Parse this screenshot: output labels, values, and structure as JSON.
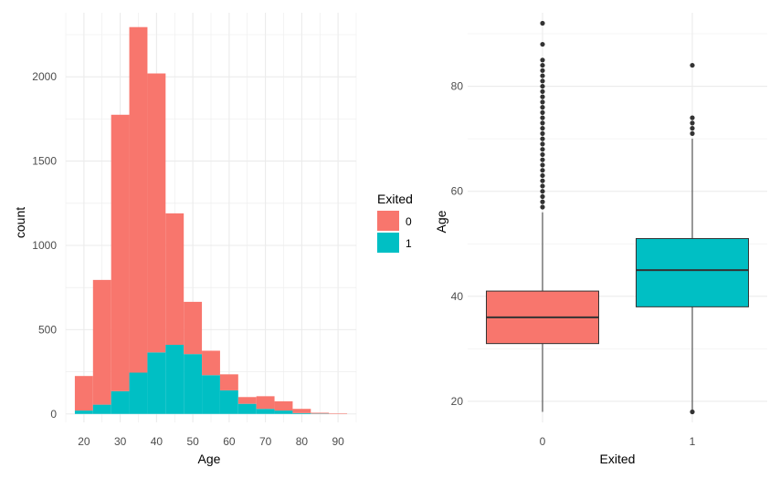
{
  "colors": {
    "exited_0": "#F8766D",
    "exited_1": "#00BFC4",
    "grid": "#ebebeb",
    "outline": "#333333"
  },
  "chart_data": [
    {
      "type": "bar",
      "subtype": "stacked-histogram",
      "title": "",
      "xlabel": "Age",
      "ylabel": "count",
      "bin_width": 5,
      "bin_starts": [
        17.5,
        22.5,
        27.5,
        32.5,
        37.5,
        42.5,
        47.5,
        52.5,
        57.5,
        62.5,
        67.5,
        72.5,
        77.5,
        82.5,
        87.5
      ],
      "series": [
        {
          "name": "0",
          "values": [
            205,
            740,
            1640,
            2050,
            1655,
            780,
            310,
            145,
            95,
            40,
            75,
            55,
            25,
            5,
            3
          ]
        },
        {
          "name": "1",
          "values": [
            20,
            55,
            135,
            245,
            365,
            410,
            355,
            230,
            140,
            60,
            30,
            20,
            5,
            2,
            0
          ]
        }
      ],
      "xlim": [
        15,
        95
      ],
      "ylim": [
        -50,
        2380
      ],
      "xticks": [
        20,
        30,
        40,
        50,
        60,
        70,
        80,
        90
      ],
      "yticks": [
        0,
        500,
        1000,
        1500,
        2000
      ],
      "legend": {
        "title": "Exited",
        "entries": [
          "0",
          "1"
        ],
        "position": "right"
      }
    },
    {
      "type": "boxplot",
      "title": "",
      "xlabel": "Exited",
      "ylabel": "Age",
      "categories": [
        "0",
        "1"
      ],
      "boxes": [
        {
          "category": "0",
          "min": 18,
          "q1": 31,
          "median": 36,
          "q3": 41,
          "max": 56,
          "outliers": [
            57,
            58,
            59,
            60,
            61,
            62,
            63,
            64,
            65,
            66,
            67,
            68,
            69,
            70,
            71,
            72,
            73,
            74,
            75,
            76,
            77,
            78,
            79,
            80,
            81,
            82,
            83,
            84,
            85,
            88,
            92
          ]
        },
        {
          "category": "1",
          "min": 18,
          "q1": 38,
          "median": 45,
          "q3": 51,
          "max": 70,
          "outliers": [
            18,
            71,
            72,
            73,
            74,
            84
          ]
        }
      ],
      "ylim": [
        16,
        94
      ],
      "yticks": [
        20,
        40,
        60,
        80
      ],
      "legend": "none"
    }
  ]
}
